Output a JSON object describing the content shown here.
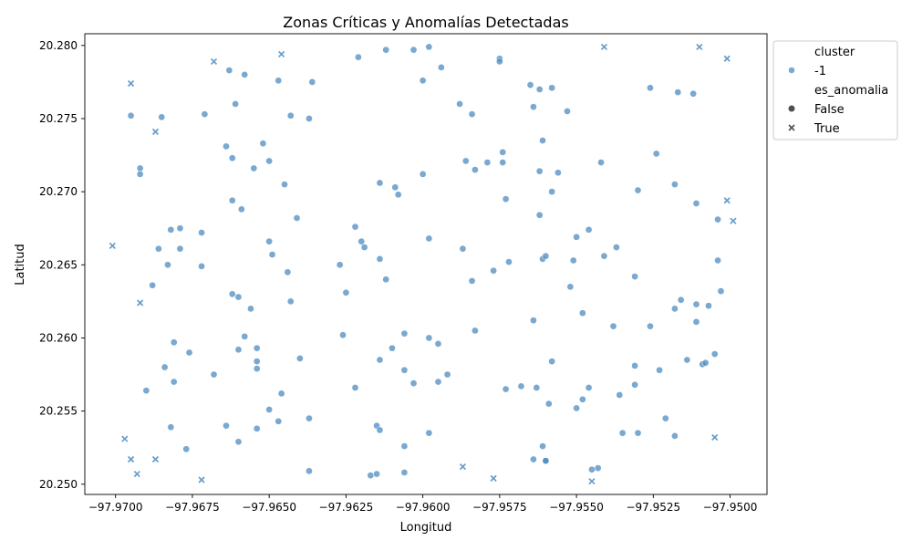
{
  "chart_data": {
    "type": "scatter",
    "title": "Zonas Críticas y Anomalías Detectadas",
    "xlabel": "Longitud",
    "ylabel": "Latitud",
    "xlim": [
      -97.971,
      -97.9488
    ],
    "ylim": [
      20.2493,
      20.2808
    ],
    "x_ticks": [
      -97.97,
      -97.9675,
      -97.965,
      -97.9625,
      -97.96,
      -97.9575,
      -97.955,
      -97.9525,
      -97.95
    ],
    "x_tick_labels": [
      "−97.9700",
      "−97.9675",
      "−97.9650",
      "−97.9625",
      "−97.9600",
      "−97.9575",
      "−97.9550",
      "−97.9525",
      "−97.9500"
    ],
    "y_ticks": [
      20.25,
      20.255,
      20.26,
      20.265,
      20.27,
      20.275,
      20.28
    ],
    "y_tick_labels": [
      "20.250",
      "20.255",
      "20.260",
      "20.265",
      "20.270",
      "20.275",
      "20.280"
    ],
    "grid": false,
    "legend": {
      "placement": "outside-top-right",
      "hue_title": "cluster",
      "hue_items": [
        {
          "label": "-1",
          "color": "#4c8bc0"
        }
      ],
      "style_title": "es_anomalia",
      "style_items": [
        {
          "label": "False",
          "marker": "circle"
        },
        {
          "label": "True",
          "marker": "x"
        }
      ]
    },
    "marker_color": "#4c8bc0",
    "series": [
      {
        "name": "False",
        "marker": "circle",
        "points": [
          [
            -97.9695,
            20.2752
          ],
          [
            -97.9685,
            20.2751
          ],
          [
            -97.9671,
            20.2753
          ],
          [
            -97.9658,
            20.278
          ],
          [
            -97.9663,
            20.2783
          ],
          [
            -97.9661,
            20.276
          ],
          [
            -97.9647,
            20.2776
          ],
          [
            -97.9636,
            20.2775
          ],
          [
            -97.9643,
            20.2752
          ],
          [
            -97.9637,
            20.275
          ],
          [
            -97.9621,
            20.2792
          ],
          [
            -97.9612,
            20.2797
          ],
          [
            -97.9603,
            20.2797
          ],
          [
            -97.9598,
            20.2799
          ],
          [
            -97.9575,
            20.2791
          ],
          [
            -97.9575,
            20.2789
          ],
          [
            -97.9594,
            20.2785
          ],
          [
            -97.96,
            20.2776
          ],
          [
            -97.9588,
            20.276
          ],
          [
            -97.9584,
            20.2753
          ],
          [
            -97.9565,
            20.2773
          ],
          [
            -97.9558,
            20.2771
          ],
          [
            -97.9562,
            20.277
          ],
          [
            -97.9564,
            20.2758
          ],
          [
            -97.9553,
            20.2755
          ],
          [
            -97.9526,
            20.2771
          ],
          [
            -97.9517,
            20.2768
          ],
          [
            -97.9512,
            20.2767
          ],
          [
            -97.9692,
            20.2716
          ],
          [
            -97.9692,
            20.2712
          ],
          [
            -97.9664,
            20.2731
          ],
          [
            -97.9662,
            20.2723
          ],
          [
            -97.9652,
            20.2733
          ],
          [
            -97.9655,
            20.2716
          ],
          [
            -97.965,
            20.2721
          ],
          [
            -97.9645,
            20.2705
          ],
          [
            -97.9662,
            20.2694
          ],
          [
            -97.9659,
            20.2688
          ],
          [
            -97.9641,
            20.2682
          ],
          [
            -97.9614,
            20.2706
          ],
          [
            -97.9609,
            20.2703
          ],
          [
            -97.9608,
            20.2698
          ],
          [
            -97.96,
            20.2712
          ],
          [
            -97.9586,
            20.2721
          ],
          [
            -97.9579,
            20.272
          ],
          [
            -97.9574,
            20.272
          ],
          [
            -97.9583,
            20.2715
          ],
          [
            -97.9574,
            20.2727
          ],
          [
            -97.9561,
            20.2735
          ],
          [
            -97.9562,
            20.2714
          ],
          [
            -97.9556,
            20.2713
          ],
          [
            -97.9573,
            20.2695
          ],
          [
            -97.9558,
            20.27
          ],
          [
            -97.9562,
            20.2684
          ],
          [
            -97.9542,
            20.272
          ],
          [
            -97.9524,
            20.2726
          ],
          [
            -97.953,
            20.2701
          ],
          [
            -97.9518,
            20.2705
          ],
          [
            -97.9511,
            20.2692
          ],
          [
            -97.9504,
            20.2681
          ],
          [
            -97.9682,
            20.2674
          ],
          [
            -97.9679,
            20.2675
          ],
          [
            -97.9672,
            20.2672
          ],
          [
            -97.9686,
            20.2661
          ],
          [
            -97.9679,
            20.2661
          ],
          [
            -97.9683,
            20.265
          ],
          [
            -97.9672,
            20.2649
          ],
          [
            -97.9688,
            20.2636
          ],
          [
            -97.9662,
            20.263
          ],
          [
            -97.966,
            20.2628
          ],
          [
            -97.9656,
            20.262
          ],
          [
            -97.965,
            20.2666
          ],
          [
            -97.9649,
            20.2657
          ],
          [
            -97.9644,
            20.2645
          ],
          [
            -97.9643,
            20.2625
          ],
          [
            -97.9627,
            20.265
          ],
          [
            -97.9622,
            20.2676
          ],
          [
            -97.962,
            20.2666
          ],
          [
            -97.9619,
            20.2662
          ],
          [
            -97.9614,
            20.2654
          ],
          [
            -97.9612,
            20.264
          ],
          [
            -97.9625,
            20.2631
          ],
          [
            -97.9598,
            20.2668
          ],
          [
            -97.9587,
            20.2661
          ],
          [
            -97.9584,
            20.2639
          ],
          [
            -97.9577,
            20.2646
          ],
          [
            -97.9572,
            20.2652
          ],
          [
            -97.9561,
            20.2654
          ],
          [
            -97.956,
            20.2656
          ],
          [
            -97.955,
            20.2669
          ],
          [
            -97.9551,
            20.2653
          ],
          [
            -97.9546,
            20.2674
          ],
          [
            -97.9537,
            20.2662
          ],
          [
            -97.9541,
            20.2656
          ],
          [
            -97.9531,
            20.2642
          ],
          [
            -97.9552,
            20.2635
          ],
          [
            -97.9548,
            20.2617
          ],
          [
            -97.9564,
            20.2612
          ],
          [
            -97.9516,
            20.2626
          ],
          [
            -97.9518,
            20.262
          ],
          [
            -97.9511,
            20.2623
          ],
          [
            -97.9507,
            20.2622
          ],
          [
            -97.9504,
            20.2653
          ],
          [
            -97.9503,
            20.2632
          ],
          [
            -97.9526,
            20.2608
          ],
          [
            -97.9538,
            20.2608
          ],
          [
            -97.9511,
            20.2611
          ],
          [
            -97.9681,
            20.2597
          ],
          [
            -97.9676,
            20.259
          ],
          [
            -97.9684,
            20.258
          ],
          [
            -97.9681,
            20.257
          ],
          [
            -97.9668,
            20.2575
          ],
          [
            -97.969,
            20.2564
          ],
          [
            -97.9658,
            20.2601
          ],
          [
            -97.966,
            20.2592
          ],
          [
            -97.9654,
            20.2593
          ],
          [
            -97.9654,
            20.2584
          ],
          [
            -97.9654,
            20.2579
          ],
          [
            -97.964,
            20.2586
          ],
          [
            -97.9626,
            20.2602
          ],
          [
            -97.9606,
            20.2603
          ],
          [
            -97.961,
            20.2593
          ],
          [
            -97.9614,
            20.2585
          ],
          [
            -97.9606,
            20.2578
          ],
          [
            -97.9603,
            20.2569
          ],
          [
            -97.9598,
            20.26
          ],
          [
            -97.9595,
            20.2596
          ],
          [
            -97.9592,
            20.2575
          ],
          [
            -97.9595,
            20.257
          ],
          [
            -97.9583,
            20.2605
          ],
          [
            -97.9622,
            20.2566
          ],
          [
            -97.9568,
            20.2567
          ],
          [
            -97.9573,
            20.2565
          ],
          [
            -97.9563,
            20.2566
          ],
          [
            -97.9558,
            20.2584
          ],
          [
            -97.9559,
            20.2555
          ],
          [
            -97.9546,
            20.2566
          ],
          [
            -97.955,
            20.2552
          ],
          [
            -97.9548,
            20.2558
          ],
          [
            -97.9536,
            20.2561
          ],
          [
            -97.9531,
            20.2581
          ],
          [
            -97.9523,
            20.2578
          ],
          [
            -97.9531,
            20.2568
          ],
          [
            -97.9514,
            20.2585
          ],
          [
            -97.9509,
            20.2582
          ],
          [
            -97.9508,
            20.2583
          ],
          [
            -97.9505,
            20.2589
          ],
          [
            -97.9682,
            20.2539
          ],
          [
            -97.9664,
            20.254
          ],
          [
            -97.9654,
            20.2538
          ],
          [
            -97.965,
            20.2551
          ],
          [
            -97.9647,
            20.2543
          ],
          [
            -97.9646,
            20.2562
          ],
          [
            -97.9637,
            20.2545
          ],
          [
            -97.966,
            20.2529
          ],
          [
            -97.9677,
            20.2524
          ],
          [
            -97.9615,
            20.254
          ],
          [
            -97.9614,
            20.2537
          ],
          [
            -97.9606,
            20.2526
          ],
          [
            -97.9598,
            20.2535
          ],
          [
            -97.9637,
            20.2509
          ],
          [
            -97.9617,
            20.2506
          ],
          [
            -97.9615,
            20.2507
          ],
          [
            -97.9606,
            20.2508
          ],
          [
            -97.9561,
            20.2526
          ],
          [
            -97.9564,
            20.2517
          ],
          [
            -97.956,
            20.2516
          ],
          [
            -97.956,
            20.2516
          ],
          [
            -97.9545,
            20.251
          ],
          [
            -97.9543,
            20.2511
          ],
          [
            -97.9535,
            20.2535
          ],
          [
            -97.953,
            20.2535
          ],
          [
            -97.9521,
            20.2545
          ],
          [
            -97.9518,
            20.2533
          ]
        ]
      },
      {
        "name": "True",
        "marker": "x",
        "points": [
          [
            -97.9695,
            20.2774
          ],
          [
            -97.9668,
            20.2789
          ],
          [
            -97.9646,
            20.2794
          ],
          [
            -97.9687,
            20.2741
          ],
          [
            -97.9541,
            20.2799
          ],
          [
            -97.951,
            20.2799
          ],
          [
            -97.9501,
            20.2791
          ],
          [
            -97.9701,
            20.2663
          ],
          [
            -97.9692,
            20.2624
          ],
          [
            -97.9501,
            20.2694
          ],
          [
            -97.9499,
            20.268
          ],
          [
            -97.9697,
            20.2531
          ],
          [
            -97.9695,
            20.2517
          ],
          [
            -97.9687,
            20.2517
          ],
          [
            -97.9693,
            20.2507
          ],
          [
            -97.9672,
            20.2503
          ],
          [
            -97.9587,
            20.2512
          ],
          [
            -97.9577,
            20.2504
          ],
          [
            -97.9545,
            20.2502
          ],
          [
            -97.9505,
            20.2532
          ]
        ]
      }
    ]
  }
}
